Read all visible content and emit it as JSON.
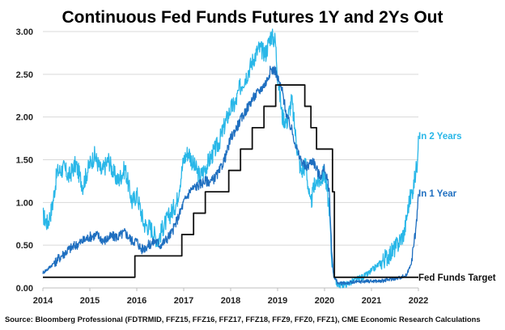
{
  "chart_data": {
    "type": "line",
    "title_parts": [
      {
        "text": "Continuous Fed Funds Futures ",
        "color": "#111111"
      },
      {
        "text": "1Y",
        "color": "#1f6fc0"
      },
      {
        "text": " and ",
        "color": "#111111"
      },
      {
        "text": "2Ys",
        "color": "#29b7e8"
      },
      {
        "text": " Out",
        "color": "#111111"
      }
    ],
    "source": "Source: Bloomberg Professional (FDTRMID, FFZ15, FFZ16, FFZ17, FFZ18, FFZ9, FFZ0, FFZ1), CME Economic Research Calculations",
    "xlim": [
      2014,
      2022
    ],
    "ylim": [
      0,
      3.0
    ],
    "x_ticks": [
      "2014",
      "2015",
      "2016",
      "2017",
      "2018",
      "2019",
      "2020",
      "2021",
      "2022"
    ],
    "y_ticks": [
      "0.00",
      "0.50",
      "1.00",
      "1.50",
      "2.00",
      "2.50",
      "3.00"
    ],
    "grid": "horizontal",
    "series": [
      {
        "name": "In 2 Years",
        "color": "#29b7e8",
        "x": [
          2014.0,
          2014.1,
          2014.2,
          2014.3,
          2014.45,
          2014.55,
          2014.7,
          2014.85,
          2015.0,
          2015.1,
          2015.25,
          2015.4,
          2015.5,
          2015.6,
          2015.75,
          2015.9,
          2016.0,
          2016.15,
          2016.3,
          2016.45,
          2016.55,
          2016.7,
          2016.85,
          2017.0,
          2017.1,
          2017.2,
          2017.35,
          2017.5,
          2017.6,
          2017.75,
          2017.9,
          2018.0,
          2018.1,
          2018.2,
          2018.35,
          2018.5,
          2018.6,
          2018.75,
          2018.85,
          2018.95,
          2019.0,
          2019.1,
          2019.2,
          2019.3,
          2019.4,
          2019.5,
          2019.6,
          2019.7,
          2019.8,
          2019.9,
          2020.0,
          2020.1,
          2020.15,
          2020.2,
          2020.25,
          2020.35,
          2020.5,
          2020.7,
          2020.9,
          2021.0,
          2021.2,
          2021.4,
          2021.55,
          2021.7,
          2021.8,
          2021.9,
          2021.97,
          2022.0
        ],
        "values": [
          0.85,
          0.75,
          0.95,
          1.35,
          1.4,
          1.3,
          1.45,
          1.2,
          1.45,
          1.55,
          1.35,
          1.5,
          1.35,
          1.25,
          1.4,
          1.0,
          1.1,
          0.75,
          0.7,
          0.55,
          0.7,
          0.85,
          1.0,
          1.5,
          1.6,
          1.45,
          1.3,
          1.45,
          1.55,
          1.7,
          1.95,
          2.1,
          2.15,
          2.35,
          2.5,
          2.7,
          2.8,
          2.75,
          2.95,
          2.9,
          2.5,
          2.0,
          1.95,
          2.2,
          1.7,
          1.35,
          1.45,
          0.95,
          1.25,
          1.25,
          1.35,
          0.95,
          0.35,
          0.15,
          0.05,
          0.03,
          0.05,
          0.1,
          0.15,
          0.2,
          0.3,
          0.4,
          0.5,
          0.65,
          1.0,
          1.2,
          1.45,
          1.78
        ]
      },
      {
        "name": "In 1 Year",
        "color": "#1f6fc0",
        "x": [
          2014.0,
          2014.1,
          2014.25,
          2014.4,
          2014.55,
          2014.7,
          2014.85,
          2015.0,
          2015.15,
          2015.3,
          2015.45,
          2015.6,
          2015.75,
          2015.9,
          2016.0,
          2016.1,
          2016.25,
          2016.4,
          2016.5,
          2016.6,
          2016.75,
          2016.9,
          2017.0,
          2017.15,
          2017.3,
          2017.45,
          2017.6,
          2017.75,
          2017.9,
          2018.0,
          2018.15,
          2018.3,
          2018.45,
          2018.6,
          2018.75,
          2018.85,
          2018.95,
          2019.0,
          2019.1,
          2019.2,
          2019.3,
          2019.45,
          2019.6,
          2019.75,
          2019.9,
          2020.0,
          2020.1,
          2020.15,
          2020.2,
          2020.3,
          2020.5,
          2020.7,
          2020.9,
          2021.0,
          2021.2,
          2021.4,
          2021.6,
          2021.75,
          2021.85,
          2021.95,
          2022.0
        ],
        "values": [
          0.18,
          0.22,
          0.3,
          0.38,
          0.45,
          0.5,
          0.55,
          0.6,
          0.62,
          0.55,
          0.6,
          0.6,
          0.65,
          0.55,
          0.55,
          0.45,
          0.5,
          0.55,
          0.5,
          0.55,
          0.65,
          0.85,
          1.0,
          1.15,
          1.2,
          1.25,
          1.25,
          1.35,
          1.55,
          1.75,
          1.9,
          2.05,
          2.2,
          2.3,
          2.4,
          2.55,
          2.55,
          2.45,
          2.3,
          2.0,
          1.85,
          1.55,
          1.4,
          1.5,
          1.3,
          1.4,
          1.15,
          0.45,
          0.12,
          0.05,
          0.06,
          0.07,
          0.08,
          0.08,
          0.08,
          0.1,
          0.12,
          0.15,
          0.3,
          0.7,
          1.1
        ]
      },
      {
        "name": "Fed Funds Target",
        "color": "#111111",
        "step": true,
        "x": [
          2014.0,
          2015.96,
          2016.96,
          2017.21,
          2017.46,
          2017.96,
          2018.21,
          2018.46,
          2018.71,
          2018.96,
          2019.58,
          2019.71,
          2019.83,
          2020.17,
          2020.21,
          2022.0
        ],
        "values": [
          0.125,
          0.375,
          0.625,
          0.875,
          1.125,
          1.375,
          1.625,
          1.875,
          2.125,
          2.375,
          2.125,
          1.875,
          1.625,
          1.125,
          0.125,
          0.125
        ]
      }
    ]
  }
}
